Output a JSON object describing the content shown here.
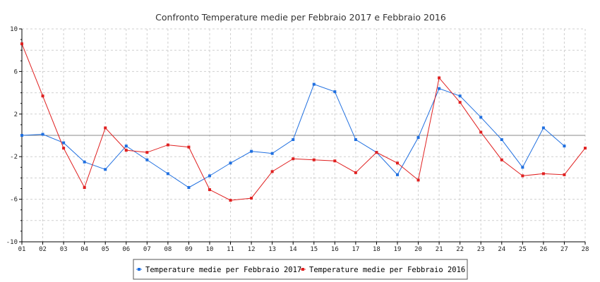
{
  "chart_data": {
    "type": "line",
    "title": "Confronto Temperature medie per Febbraio 2017 e Febbraio 2016",
    "xlabel": "",
    "ylabel": "",
    "categories": [
      "01",
      "02",
      "03",
      "04",
      "05",
      "06",
      "07",
      "08",
      "09",
      "10",
      "11",
      "12",
      "13",
      "14",
      "15",
      "16",
      "17",
      "18",
      "19",
      "20",
      "21",
      "22",
      "23",
      "24",
      "25",
      "26",
      "27",
      "28"
    ],
    "ylim": [
      -10,
      10
    ],
    "yticks": [
      "10",
      "6",
      "2",
      "-2",
      "-6",
      "-10"
    ],
    "grid": true,
    "zero_line": true,
    "legend_position": "bottom",
    "series": [
      {
        "name": "Temperature medie per Febbraio 2017",
        "color": "#1f6fe0",
        "values": [
          0.0,
          0.1,
          -0.7,
          -2.5,
          -3.2,
          -1.0,
          -2.3,
          -3.6,
          -4.9,
          -3.8,
          -2.6,
          -1.5,
          -1.7,
          -0.4,
          4.8,
          4.1,
          -0.4,
          -1.6,
          -3.7,
          -0.2,
          4.4,
          3.7,
          1.7,
          -0.4,
          -3.0,
          0.7,
          -1.0,
          null
        ]
      },
      {
        "name": "Temperature medie per Febbraio 2016",
        "color": "#e02020",
        "values": [
          8.6,
          3.7,
          -1.2,
          -4.9,
          0.7,
          -1.4,
          -1.6,
          -0.9,
          -1.1,
          -5.1,
          -6.1,
          -5.9,
          -3.4,
          -2.2,
          -2.3,
          -2.4,
          -3.5,
          -1.6,
          -2.6,
          -4.2,
          5.4,
          3.1,
          0.3,
          -2.3,
          -3.8,
          -3.6,
          -3.7,
          -1.2
        ]
      }
    ]
  }
}
